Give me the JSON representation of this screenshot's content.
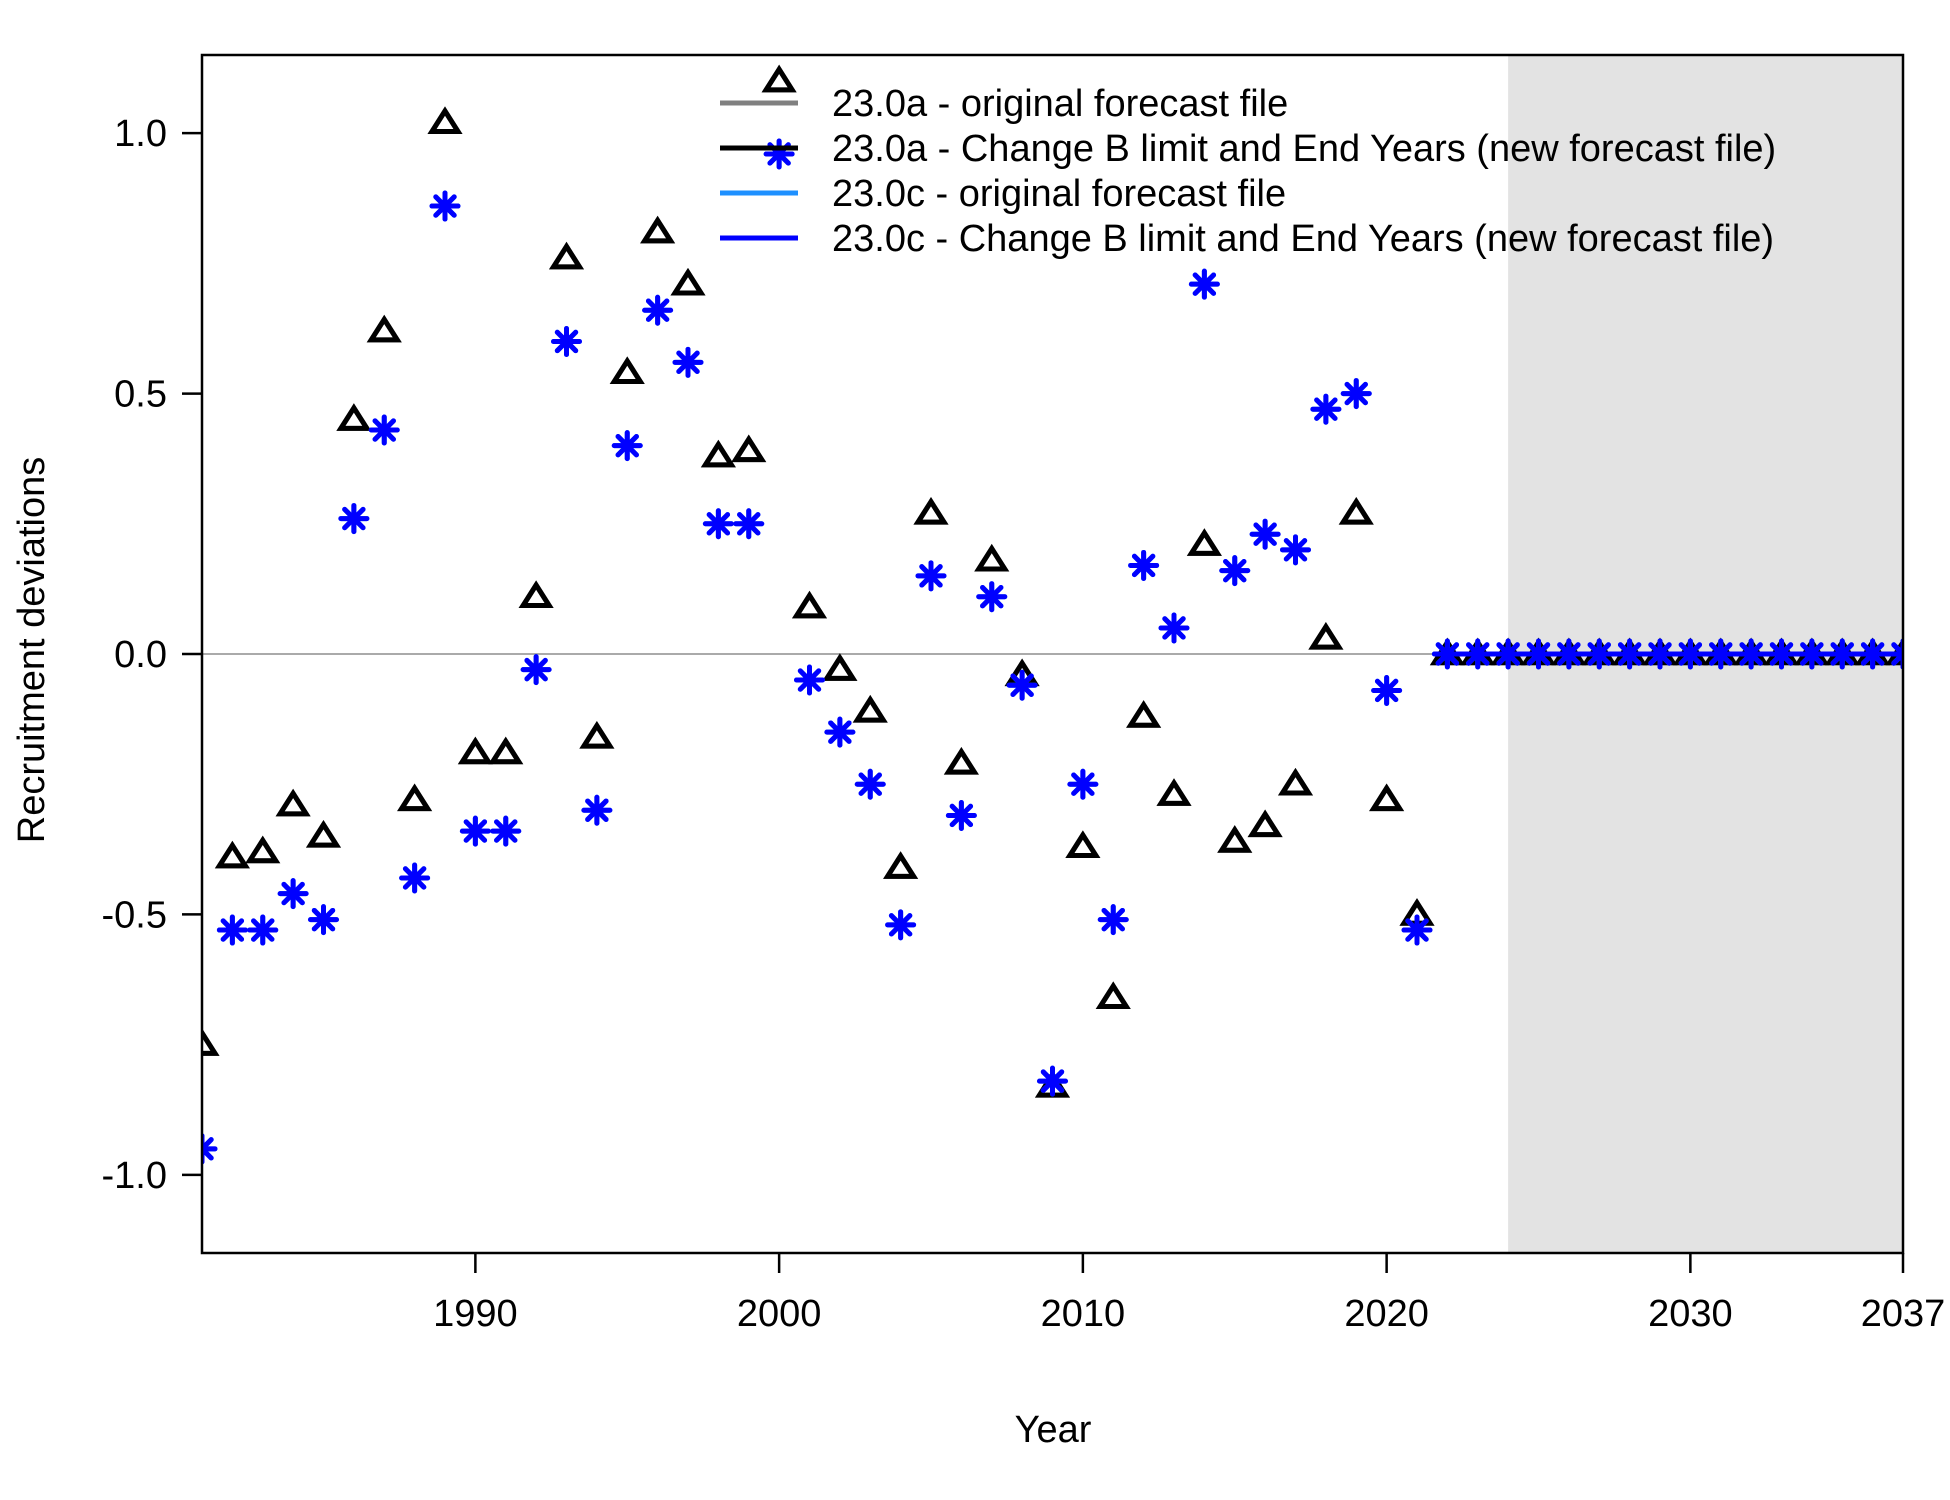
{
  "chart_data": {
    "type": "scatter",
    "xlabel": "Year",
    "ylabel": "Recruitment deviations",
    "xlim": [
      1981,
      2037
    ],
    "ylim": [
      -1.15,
      1.15
    ],
    "x_ticks": [
      1990,
      2000,
      2010,
      2020,
      2030,
      2037
    ],
    "y_ticks": [
      -1.0,
      -0.5,
      0.0,
      0.5,
      1.0
    ],
    "y_tick_labels": [
      "-1.0",
      "-0.5",
      "0.0",
      "0.5",
      "1.0"
    ],
    "forecast_shade_from": 2024,
    "reference_line_y": 0,
    "legend_position": "top-right",
    "series": [
      {
        "name": "23.0a - original forecast file",
        "color": "#808080",
        "marker": "triangle",
        "x": [
          1981,
          1982,
          1983,
          1984,
          1985,
          1986,
          1987,
          1988,
          1989,
          1990,
          1991,
          1992,
          1993,
          1994,
          1995,
          1996,
          1997,
          1998,
          1999,
          2000,
          2001,
          2002,
          2003,
          2004,
          2005,
          2006,
          2007,
          2008,
          2009,
          2010,
          2011,
          2012,
          2013,
          2014,
          2015,
          2016,
          2017,
          2018,
          2019,
          2020,
          2021,
          2022,
          2023,
          2024,
          2025,
          2026,
          2027,
          2028,
          2029,
          2030,
          2031,
          2032,
          2033,
          2034,
          2035,
          2036,
          2037
        ],
        "y": [
          -0.75,
          -0.39,
          -0.38,
          -0.29,
          -0.35,
          0.45,
          0.62,
          -0.28,
          1.02,
          -0.19,
          -0.19,
          0.11,
          0.76,
          -0.16,
          0.54,
          0.81,
          0.71,
          0.38,
          0.39,
          1.1,
          0.09,
          -0.03,
          -0.11,
          -0.41,
          0.27,
          -0.21,
          0.18,
          -0.04,
          -0.83,
          -0.37,
          -0.66,
          -0.12,
          -0.27,
          0.21,
          -0.36,
          -0.33,
          -0.25,
          0.03,
          0.27,
          -0.28,
          -0.5,
          0,
          0,
          0,
          0,
          0,
          0,
          0,
          0,
          0,
          0,
          0,
          0,
          0,
          0,
          0,
          0
        ]
      },
      {
        "name": "23.0a - Change B limit and End Years (new forecast file)",
        "color": "#000000",
        "marker": "triangle",
        "x": [
          1981,
          1982,
          1983,
          1984,
          1985,
          1986,
          1987,
          1988,
          1989,
          1990,
          1991,
          1992,
          1993,
          1994,
          1995,
          1996,
          1997,
          1998,
          1999,
          2000,
          2001,
          2002,
          2003,
          2004,
          2005,
          2006,
          2007,
          2008,
          2009,
          2010,
          2011,
          2012,
          2013,
          2014,
          2015,
          2016,
          2017,
          2018,
          2019,
          2020,
          2021,
          2022,
          2023,
          2024,
          2025,
          2026,
          2027,
          2028,
          2029,
          2030,
          2031,
          2032,
          2033,
          2034,
          2035,
          2036,
          2037
        ],
        "y": [
          -0.75,
          -0.39,
          -0.38,
          -0.29,
          -0.35,
          0.45,
          0.62,
          -0.28,
          1.02,
          -0.19,
          -0.19,
          0.11,
          0.76,
          -0.16,
          0.54,
          0.81,
          0.71,
          0.38,
          0.39,
          1.1,
          0.09,
          -0.03,
          -0.11,
          -0.41,
          0.27,
          -0.21,
          0.18,
          -0.04,
          -0.83,
          -0.37,
          -0.66,
          -0.12,
          -0.27,
          0.21,
          -0.36,
          -0.33,
          -0.25,
          0.03,
          0.27,
          -0.28,
          -0.5,
          0,
          0,
          0,
          0,
          0,
          0,
          0,
          0,
          0,
          0,
          0,
          0,
          0,
          0,
          0,
          0
        ]
      },
      {
        "name": "23.0c - original forecast file",
        "color": "#1e90ff",
        "marker": "asterisk",
        "x": [
          1981,
          1982,
          1983,
          1984,
          1985,
          1986,
          1987,
          1988,
          1989,
          1990,
          1991,
          1992,
          1993,
          1994,
          1995,
          1996,
          1997,
          1998,
          1999,
          2000,
          2001,
          2002,
          2003,
          2004,
          2005,
          2006,
          2007,
          2008,
          2009,
          2010,
          2011,
          2012,
          2013,
          2014,
          2015,
          2016,
          2017,
          2018,
          2019,
          2020,
          2021,
          2022,
          2023,
          2024,
          2025,
          2026,
          2027,
          2028,
          2029,
          2030,
          2031,
          2032,
          2033,
          2034,
          2035,
          2036,
          2037
        ],
        "y": [
          -0.95,
          -0.53,
          -0.53,
          -0.46,
          -0.51,
          0.26,
          0.43,
          -0.43,
          0.86,
          -0.34,
          -0.34,
          -0.03,
          0.6,
          -0.3,
          0.4,
          0.66,
          0.56,
          0.25,
          0.25,
          0.96,
          -0.05,
          -0.15,
          -0.25,
          -0.52,
          0.15,
          -0.31,
          0.11,
          -0.06,
          -0.82,
          -0.25,
          -0.51,
          0.17,
          0.05,
          0.71,
          0.16,
          0.23,
          0.2,
          0.47,
          0.5,
          -0.07,
          -0.53,
          0,
          0,
          0,
          0,
          0,
          0,
          0,
          0,
          0,
          0,
          0,
          0,
          0,
          0,
          0,
          0
        ]
      },
      {
        "name": "23.0c - Change B limit and End Years (new forecast file)",
        "color": "#0000ff",
        "marker": "asterisk",
        "x": [
          1981,
          1982,
          1983,
          1984,
          1985,
          1986,
          1987,
          1988,
          1989,
          1990,
          1991,
          1992,
          1993,
          1994,
          1995,
          1996,
          1997,
          1998,
          1999,
          2000,
          2001,
          2002,
          2003,
          2004,
          2005,
          2006,
          2007,
          2008,
          2009,
          2010,
          2011,
          2012,
          2013,
          2014,
          2015,
          2016,
          2017,
          2018,
          2019,
          2020,
          2021,
          2022,
          2023,
          2024,
          2025,
          2026,
          2027,
          2028,
          2029,
          2030,
          2031,
          2032,
          2033,
          2034,
          2035,
          2036,
          2037
        ],
        "y": [
          -0.95,
          -0.53,
          -0.53,
          -0.46,
          -0.51,
          0.26,
          0.43,
          -0.43,
          0.86,
          -0.34,
          -0.34,
          -0.03,
          0.6,
          -0.3,
          0.4,
          0.66,
          0.56,
          0.25,
          0.25,
          0.96,
          -0.05,
          -0.15,
          -0.25,
          -0.52,
          0.15,
          -0.31,
          0.11,
          -0.06,
          -0.82,
          -0.25,
          -0.51,
          0.17,
          0.05,
          0.71,
          0.16,
          0.23,
          0.2,
          0.47,
          0.5,
          -0.07,
          -0.53,
          0,
          0,
          0,
          0,
          0,
          0,
          0,
          0,
          0,
          0,
          0,
          0,
          0,
          0,
          0,
          0
        ]
      }
    ]
  }
}
